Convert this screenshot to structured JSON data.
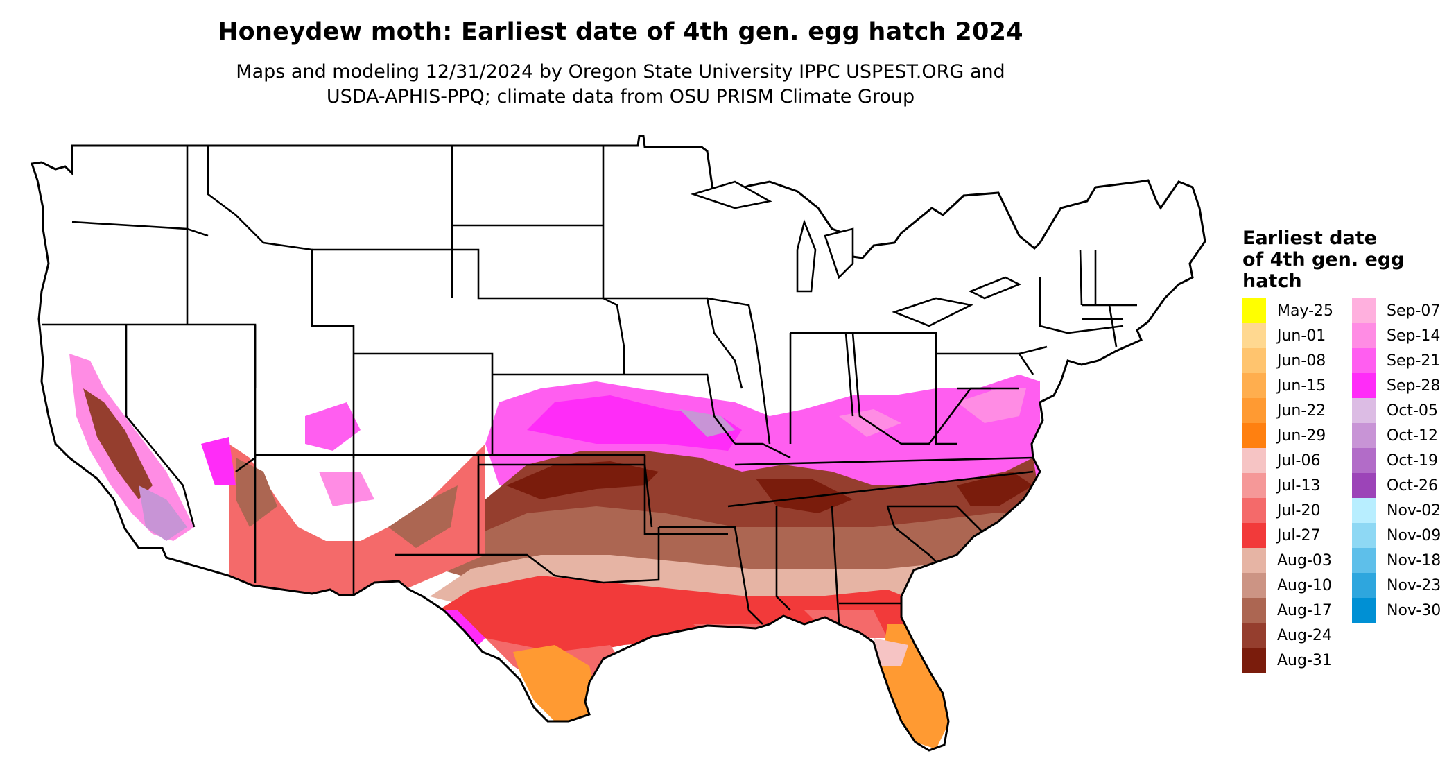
{
  "title": "Honeydew moth: Earliest date of 4th gen. egg hatch 2024",
  "subtitle_line1": "Maps and modeling 12/31/2024 by Oregon State University IPPC USPEST.ORG and",
  "subtitle_line2": "USDA-APHIS-PPQ; climate data from OSU PRISM Climate Group",
  "legend": {
    "title_line1": "Earliest date",
    "title_line2": "of 4th gen. egg",
    "title_line3": "hatch",
    "items": [
      {
        "label": "May-25",
        "color": "#ffff00"
      },
      {
        "label": "Jun-01",
        "color": "#ffd890"
      },
      {
        "label": "Jun-08",
        "color": "#ffc46e"
      },
      {
        "label": "Jun-15",
        "color": "#ffae4e"
      },
      {
        "label": "Jun-22",
        "color": "#ff9a32"
      },
      {
        "label": "Jun-29",
        "color": "#ff8010"
      },
      {
        "label": "Jul-06",
        "color": "#f6c4c4"
      },
      {
        "label": "Jul-13",
        "color": "#f59898"
      },
      {
        "label": "Jul-20",
        "color": "#f46a6a"
      },
      {
        "label": "Jul-27",
        "color": "#f23a3a"
      },
      {
        "label": "Aug-03",
        "color": "#e6b4a4"
      },
      {
        "label": "Aug-10",
        "color": "#cc9484"
      },
      {
        "label": "Aug-17",
        "color": "#ac6652"
      },
      {
        "label": "Aug-24",
        "color": "#953e2e"
      },
      {
        "label": "Aug-31",
        "color": "#7a1c0c"
      },
      {
        "label": "Sep-07",
        "color": "#ffb0de"
      },
      {
        "label": "Sep-14",
        "color": "#ff8ce4"
      },
      {
        "label": "Sep-21",
        "color": "#ff5ef0"
      },
      {
        "label": "Sep-28",
        "color": "#ff2cf8"
      },
      {
        "label": "Oct-05",
        "color": "#dcbce4"
      },
      {
        "label": "Oct-12",
        "color": "#c894d6"
      },
      {
        "label": "Oct-19",
        "color": "#b26cc8"
      },
      {
        "label": "Oct-26",
        "color": "#9c44b8"
      },
      {
        "label": "Nov-02",
        "color": "#b8eeff"
      },
      {
        "label": "Nov-09",
        "color": "#8ed8f4"
      },
      {
        "label": "Nov-18",
        "color": "#5ebfea"
      },
      {
        "label": "Nov-23",
        "color": "#2ea6de"
      },
      {
        "label": "Nov-30",
        "color": "#0090d4"
      }
    ]
  }
}
